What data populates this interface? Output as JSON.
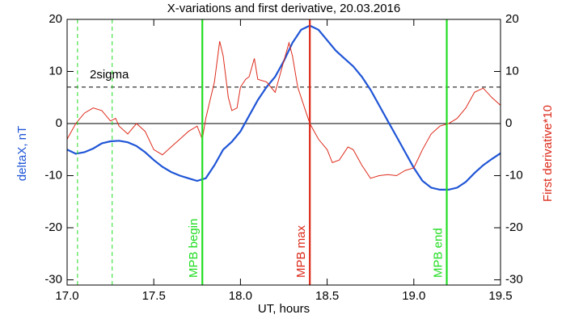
{
  "chart_data": {
    "type": "line",
    "title": "X-variations and first derivative, 20.03.2016",
    "xlabel": "UT, hours",
    "ylabel": "deltaX, nT",
    "y2label": "First derivative*10",
    "ylabel_color": "#1f55d6",
    "y2label_color": "#dd2a1a",
    "xlim": [
      17,
      19.5
    ],
    "xticks": [
      {
        "value": 17,
        "label": "17.0"
      },
      17.5,
      {
        "value": 18,
        "label": "18.0"
      },
      18.5,
      {
        "value": 19,
        "label": "19.0"
      },
      19.5
    ],
    "ylim": [
      -31,
      20
    ],
    "yticks": [
      20,
      10,
      0,
      -10,
      -20,
      -30
    ],
    "y2lim": [
      -31,
      20
    ],
    "y2ticks": [
      20,
      10,
      0,
      -10,
      -20,
      -30
    ],
    "series": [
      {
        "color": "#1f55d6",
        "axis": "y",
        "x": [
          17,
          17.05,
          17.1,
          17.15,
          17.2,
          17.25,
          17.3,
          17.35,
          17.4,
          17.45,
          17.5,
          17.55,
          17.6,
          17.65,
          17.7,
          17.75,
          17.8,
          17.85,
          17.9,
          17.95,
          18,
          18.05,
          18.1,
          18.15,
          18.2,
          18.25,
          18.3,
          18.35,
          18.4,
          18.45,
          18.5,
          18.55,
          18.6,
          18.65,
          18.7,
          18.75,
          18.8,
          18.85,
          18.9,
          18.95,
          19,
          19.05,
          19.1,
          19.15,
          19.2,
          19.25,
          19.3,
          19.35,
          19.4,
          19.45,
          19.5
        ],
        "values": [
          -5,
          -5.8,
          -5.5,
          -4.8,
          -3.8,
          -3.4,
          -3.3,
          -3.6,
          -4.3,
          -5.5,
          -7,
          -8.3,
          -9.3,
          -10,
          -10.5,
          -11,
          -10.5,
          -8,
          -5,
          -3.5,
          -1.5,
          1.5,
          4.5,
          7,
          9,
          12,
          15.5,
          18,
          18.8,
          18,
          16,
          14,
          12.5,
          11,
          9,
          6.5,
          3.5,
          0.5,
          -2.5,
          -5.5,
          -8.5,
          -11,
          -12.3,
          -12.7,
          -12.7,
          -12.3,
          -11.2,
          -9.5,
          -8,
          -6.8,
          -5.7
        ]
      },
      {
        "color": "#dd2a1a",
        "axis": "y2",
        "x": [
          17,
          17.05,
          17.1,
          17.15,
          17.2,
          17.25,
          17.28,
          17.3,
          17.35,
          17.4,
          17.45,
          17.5,
          17.55,
          17.6,
          17.65,
          17.7,
          17.75,
          17.78,
          17.8,
          17.85,
          17.88,
          17.9,
          17.93,
          17.95,
          17.98,
          18,
          18.03,
          18.05,
          18.08,
          18.1,
          18.15,
          18.2,
          18.25,
          18.28,
          18.3,
          18.33,
          18.37,
          18.4,
          18.45,
          18.5,
          18.53,
          18.57,
          18.62,
          18.65,
          18.7,
          18.75,
          18.8,
          18.85,
          18.9,
          18.95,
          19,
          19.05,
          19.1,
          19.15,
          19.2,
          19.25,
          19.3,
          19.35,
          19.4,
          19.45,
          19.5
        ],
        "values": [
          -3,
          0,
          2,
          3,
          2.5,
          0.5,
          1,
          -0.5,
          -2,
          0,
          -1.5,
          -5,
          -6,
          -4.5,
          -3,
          -1.5,
          -0.5,
          -3,
          1,
          8,
          15.8,
          13,
          5,
          2.5,
          3,
          7,
          8.5,
          9,
          12.5,
          8.5,
          8,
          6,
          12,
          15.5,
          13,
          7,
          3,
          0,
          -3,
          -5,
          -7.5,
          -7,
          -4.5,
          -5,
          -8,
          -10.5,
          -10,
          -9.8,
          -10,
          -9,
          -8.5,
          -5,
          -2,
          -0.5,
          0,
          1,
          3,
          6,
          6.8,
          5,
          3.5
        ]
      }
    ],
    "vlines": [
      {
        "x": 17.06,
        "color": "#22dd22",
        "dashed": true
      },
      {
        "x": 17.26,
        "color": "#22dd22",
        "dashed": true
      },
      {
        "x": 17.78,
        "color": "#22dd22",
        "dashed": false,
        "label": "MPB begin"
      },
      {
        "x": 18.4,
        "color": "#dd2a1a",
        "dashed": false,
        "label": "MPB max"
      },
      {
        "x": 19.19,
        "color": "#22dd22",
        "dashed": false,
        "label": "MPB end"
      }
    ],
    "hlines": [
      {
        "y": 7,
        "color": "#000000",
        "dashed": true,
        "label": "2sigma"
      },
      {
        "y": 0,
        "color": "#000000",
        "dashed": false
      }
    ]
  }
}
